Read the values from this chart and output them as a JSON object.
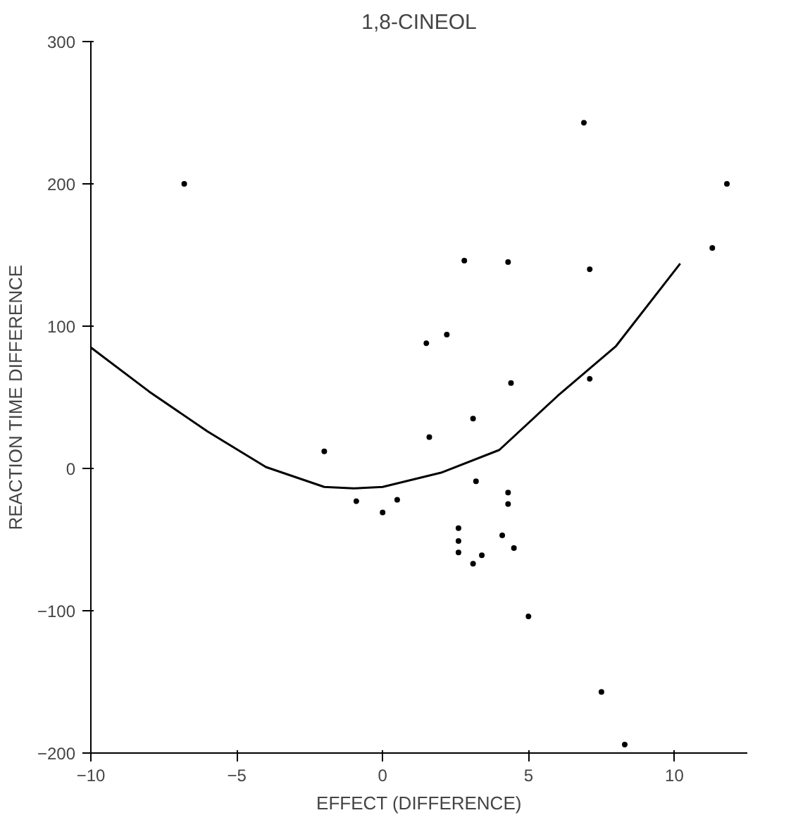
{
  "chart_data": {
    "type": "scatter",
    "title": "1,8-CINEOL",
    "xlabel": "EFFECT (DIFFERENCE)",
    "ylabel": "REACTION TIME DIFFERENCE",
    "xlim": [
      -10,
      12.5
    ],
    "ylim": [
      -200,
      300
    ],
    "xticks": [
      -10,
      -5,
      0,
      5,
      10
    ],
    "yticks": [
      -200,
      -100,
      0,
      100,
      200,
      300
    ],
    "grid": false,
    "series": [
      {
        "color": "#000000",
        "marker": "circle",
        "x": [
          -6.8,
          -2.0,
          -0.9,
          0,
          0.5,
          1.5,
          2.2,
          1.6,
          2.8,
          4.3,
          7.1,
          4.4,
          3.1,
          3.2,
          4.3,
          4.3,
          2.6,
          2.6,
          2.6,
          3.1,
          3.4,
          4.1,
          4.5,
          5.0,
          7.5,
          8.3,
          7.1,
          6.9,
          11.8,
          11.3
        ],
        "values": [
          200,
          12,
          -23,
          -31,
          -22,
          88,
          94,
          22,
          146,
          145,
          140,
          60,
          35,
          -9,
          -17,
          -25,
          -42,
          -51,
          -59,
          -67,
          -61,
          -47,
          -56,
          -104,
          -157,
          -194,
          63,
          243,
          200,
          155
        ]
      },
      {
        "type": "line",
        "color": "#000000",
        "x": [
          -10,
          -8,
          -6,
          -4,
          -2,
          -1,
          0,
          2,
          4,
          6,
          8,
          10.2
        ],
        "values": [
          85,
          54,
          26,
          1,
          -13,
          -14,
          -13,
          -3,
          13,
          51,
          86,
          144
        ]
      }
    ]
  }
}
